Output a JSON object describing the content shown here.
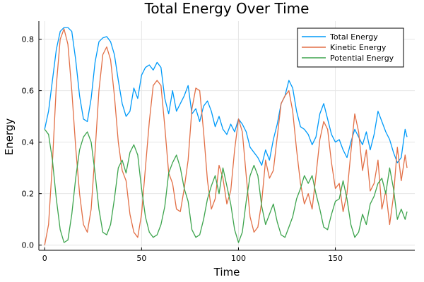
{
  "chart_data": {
    "type": "line",
    "title": "Total Energy Over Time",
    "xlabel": "Time",
    "ylabel": "Energy",
    "xlim": [
      -3,
      191
    ],
    "ylim": [
      -0.02,
      0.87
    ],
    "xticks": [
      0,
      50,
      100,
      150
    ],
    "xtick_labels": [
      "0",
      "50",
      "100",
      "150"
    ],
    "yticks": [
      0.0,
      0.2,
      0.4,
      0.6,
      0.8
    ],
    "ytick_labels": [
      "0.0",
      "0.2",
      "0.4",
      "0.6",
      "0.8"
    ],
    "grid": true,
    "legend_position": "top-right",
    "series": [
      {
        "name": "Total Energy",
        "color": "#009AF9",
        "x": [
          0,
          2,
          4,
          6,
          8,
          10,
          12,
          14,
          16,
          18,
          20,
          22,
          24,
          26,
          28,
          30,
          32,
          34,
          36,
          38,
          40,
          42,
          44,
          46,
          48,
          50,
          52,
          54,
          56,
          58,
          60,
          62,
          64,
          66,
          68,
          70,
          72,
          74,
          76,
          78,
          80,
          82,
          84,
          86,
          88,
          90,
          92,
          94,
          96,
          98,
          100,
          102,
          104,
          106,
          108,
          110,
          112,
          114,
          116,
          118,
          120,
          122,
          124,
          126,
          128,
          130,
          132,
          134,
          136,
          138,
          140,
          142,
          144,
          146,
          148,
          150,
          152,
          154,
          156,
          158,
          160,
          162,
          164,
          166,
          168,
          170,
          172,
          174,
          176,
          178,
          180,
          182,
          184,
          186,
          187
        ],
        "y": [
          0.45,
          0.52,
          0.64,
          0.76,
          0.83,
          0.845,
          0.845,
          0.83,
          0.72,
          0.58,
          0.49,
          0.48,
          0.57,
          0.71,
          0.79,
          0.805,
          0.81,
          0.79,
          0.74,
          0.64,
          0.55,
          0.5,
          0.52,
          0.61,
          0.57,
          0.66,
          0.69,
          0.7,
          0.68,
          0.71,
          0.69,
          0.57,
          0.51,
          0.6,
          0.52,
          0.55,
          0.58,
          0.62,
          0.51,
          0.53,
          0.48,
          0.54,
          0.56,
          0.52,
          0.46,
          0.5,
          0.45,
          0.43,
          0.47,
          0.44,
          0.49,
          0.47,
          0.44,
          0.38,
          0.36,
          0.34,
          0.31,
          0.37,
          0.33,
          0.41,
          0.47,
          0.55,
          0.58,
          0.64,
          0.61,
          0.52,
          0.46,
          0.45,
          0.43,
          0.39,
          0.42,
          0.51,
          0.55,
          0.49,
          0.43,
          0.4,
          0.41,
          0.37,
          0.34,
          0.4,
          0.45,
          0.42,
          0.39,
          0.44,
          0.37,
          0.43,
          0.52,
          0.48,
          0.44,
          0.41,
          0.36,
          0.32,
          0.34,
          0.45,
          0.42
        ]
      },
      {
        "name": "Kinetic Energy",
        "color": "#E26F46",
        "x": [
          0,
          2,
          4,
          6,
          8,
          10,
          12,
          14,
          16,
          18,
          20,
          22,
          24,
          26,
          28,
          30,
          32,
          34,
          36,
          38,
          40,
          42,
          44,
          46,
          48,
          50,
          52,
          54,
          56,
          58,
          60,
          62,
          64,
          66,
          68,
          70,
          72,
          74,
          76,
          78,
          80,
          82,
          84,
          86,
          88,
          90,
          92,
          94,
          96,
          98,
          100,
          102,
          104,
          106,
          108,
          110,
          112,
          114,
          116,
          118,
          120,
          122,
          124,
          126,
          128,
          130,
          132,
          134,
          136,
          138,
          140,
          142,
          144,
          146,
          148,
          150,
          152,
          154,
          156,
          158,
          160,
          162,
          164,
          166,
          168,
          170,
          172,
          174,
          176,
          178,
          180,
          182,
          184,
          186,
          187
        ],
        "y": [
          0.0,
          0.08,
          0.32,
          0.62,
          0.8,
          0.84,
          0.78,
          0.6,
          0.38,
          0.2,
          0.08,
          0.05,
          0.14,
          0.36,
          0.6,
          0.74,
          0.77,
          0.72,
          0.58,
          0.4,
          0.29,
          0.25,
          0.12,
          0.05,
          0.03,
          0.12,
          0.3,
          0.48,
          0.62,
          0.64,
          0.62,
          0.46,
          0.28,
          0.24,
          0.14,
          0.13,
          0.22,
          0.33,
          0.53,
          0.61,
          0.6,
          0.44,
          0.25,
          0.14,
          0.18,
          0.31,
          0.26,
          0.16,
          0.21,
          0.37,
          0.49,
          0.44,
          0.27,
          0.11,
          0.05,
          0.07,
          0.17,
          0.33,
          0.26,
          0.29,
          0.42,
          0.55,
          0.58,
          0.6,
          0.52,
          0.37,
          0.24,
          0.16,
          0.2,
          0.14,
          0.27,
          0.41,
          0.48,
          0.45,
          0.32,
          0.22,
          0.24,
          0.13,
          0.2,
          0.36,
          0.51,
          0.44,
          0.29,
          0.37,
          0.21,
          0.24,
          0.33,
          0.14,
          0.21,
          0.08,
          0.19,
          0.38,
          0.25,
          0.35,
          0.3
        ]
      },
      {
        "name": "Potential Energy",
        "color": "#3DA44D",
        "x": [
          0,
          2,
          4,
          6,
          8,
          10,
          12,
          14,
          16,
          18,
          20,
          22,
          24,
          26,
          28,
          30,
          32,
          34,
          36,
          38,
          40,
          42,
          44,
          46,
          48,
          50,
          52,
          54,
          56,
          58,
          60,
          62,
          64,
          66,
          68,
          70,
          72,
          74,
          76,
          78,
          80,
          82,
          84,
          86,
          88,
          90,
          92,
          94,
          96,
          98,
          100,
          102,
          104,
          106,
          108,
          110,
          112,
          114,
          116,
          118,
          120,
          122,
          124,
          126,
          128,
          130,
          132,
          134,
          136,
          138,
          140,
          142,
          144,
          146,
          148,
          150,
          152,
          154,
          156,
          158,
          160,
          162,
          164,
          166,
          168,
          170,
          172,
          174,
          176,
          178,
          180,
          182,
          184,
          186,
          187
        ],
        "y": [
          0.45,
          0.43,
          0.33,
          0.18,
          0.06,
          0.01,
          0.02,
          0.12,
          0.26,
          0.37,
          0.42,
          0.44,
          0.4,
          0.28,
          0.14,
          0.05,
          0.04,
          0.08,
          0.18,
          0.3,
          0.33,
          0.28,
          0.36,
          0.39,
          0.35,
          0.22,
          0.11,
          0.05,
          0.03,
          0.04,
          0.08,
          0.15,
          0.28,
          0.32,
          0.35,
          0.3,
          0.22,
          0.17,
          0.06,
          0.03,
          0.04,
          0.1,
          0.18,
          0.23,
          0.27,
          0.2,
          0.3,
          0.23,
          0.16,
          0.06,
          0.01,
          0.05,
          0.17,
          0.27,
          0.31,
          0.27,
          0.15,
          0.08,
          0.12,
          0.16,
          0.09,
          0.04,
          0.03,
          0.07,
          0.11,
          0.18,
          0.22,
          0.27,
          0.24,
          0.27,
          0.2,
          0.14,
          0.07,
          0.06,
          0.12,
          0.17,
          0.18,
          0.25,
          0.18,
          0.08,
          0.03,
          0.05,
          0.12,
          0.08,
          0.16,
          0.19,
          0.24,
          0.26,
          0.2,
          0.3,
          0.22,
          0.1,
          0.14,
          0.1,
          0.13
        ]
      }
    ]
  }
}
